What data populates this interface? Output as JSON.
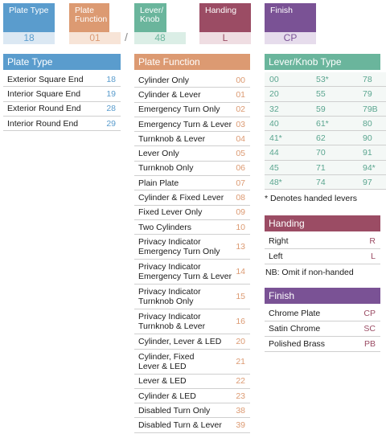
{
  "colors": {
    "plate_type": "#5a9ccd",
    "plate_type_light": "#dbe8f3",
    "plate_function": "#dc9a72",
    "plate_function_light": "#f7e4d7",
    "lever": "#6ab59c",
    "lever_light": "#dbeee6",
    "handing": "#9b4c64",
    "handing_light": "#efdde2",
    "finish": "#7a5295",
    "finish_light": "#e6dcec"
  },
  "header": [
    {
      "label": "Plate Type",
      "code": "18"
    },
    {
      "label": "Plate Function",
      "code": "01"
    },
    {
      "label": "Lever/ Knob",
      "code": "48"
    },
    {
      "label": "Handing",
      "code": "L"
    },
    {
      "label": "Finish",
      "code": "CP"
    }
  ],
  "separator": "/",
  "plate_type": {
    "title": "Plate Type",
    "rows": [
      {
        "label": "Exterior Square End",
        "value": "18"
      },
      {
        "label": "Interior Square End",
        "value": "19"
      },
      {
        "label": "Exterior Round End",
        "value": "28"
      },
      {
        "label": "Interior Round End",
        "value": "29"
      }
    ]
  },
  "plate_function": {
    "title": "Plate Function",
    "rows": [
      {
        "label": "Cylinder Only",
        "value": "00"
      },
      {
        "label": "Cylinder & Lever",
        "value": "01"
      },
      {
        "label": "Emergency Turn Only",
        "value": "02"
      },
      {
        "label": "Emergency Turn & Lever",
        "value": "03"
      },
      {
        "label": "Turnknob & Lever",
        "value": "04"
      },
      {
        "label": "Lever Only",
        "value": "05"
      },
      {
        "label": "Turnknob Only",
        "value": "06"
      },
      {
        "label": "Plain Plate",
        "value": "07"
      },
      {
        "label": "Cylinder & Fixed Lever",
        "value": "08"
      },
      {
        "label": "Fixed Lever Only",
        "value": "09"
      },
      {
        "label": "Two Cylinders",
        "value": "10"
      },
      {
        "label": "Privacy Indicator",
        "label2": "Emergency Turn Only",
        "value": "13"
      },
      {
        "label": "Privacy Indicator",
        "label2": "Emergency Turn & Lever",
        "value": "14"
      },
      {
        "label": "Privacy Indicator",
        "label2": "Turnknob Only",
        "value": "15"
      },
      {
        "label": "Privacy Indicator",
        "label2": "Turnknob & Lever",
        "value": "16"
      },
      {
        "label": "Cylinder, Lever & LED",
        "value": "20"
      },
      {
        "label": "Cylinder, Fixed",
        "label2": "Lever & LED",
        "value": "21"
      },
      {
        "label": "Lever & LED",
        "value": "22"
      },
      {
        "label": "Cylinder & LED",
        "value": "23"
      },
      {
        "label": "Disabled Turn Only",
        "value": "38"
      },
      {
        "label": "Disabled Turn & Lever",
        "value": "39"
      }
    ]
  },
  "lever": {
    "title": "Lever/Knob Type",
    "rows": [
      [
        "00",
        "53*",
        "78"
      ],
      [
        "20",
        "55",
        "79"
      ],
      [
        "32",
        "59",
        "79B"
      ],
      [
        "40",
        "61*",
        "80"
      ],
      [
        "41*",
        "62",
        "90"
      ],
      [
        "44",
        "70",
        "91"
      ],
      [
        "45",
        "71",
        "94*"
      ],
      [
        "48*",
        "74",
        "97"
      ]
    ],
    "note": "* Denotes handed levers"
  },
  "handing": {
    "title": "Handing",
    "rows": [
      {
        "label": "Right",
        "value": "R"
      },
      {
        "label": "Left",
        "value": "L"
      }
    ],
    "note": "NB: Omit if non-handed"
  },
  "finish": {
    "title": "Finish",
    "rows": [
      {
        "label": "Chrome Plate",
        "value": "CP"
      },
      {
        "label": "Satin Chrome",
        "value": "SC"
      },
      {
        "label": "Polished Brass",
        "value": "PB"
      }
    ]
  }
}
